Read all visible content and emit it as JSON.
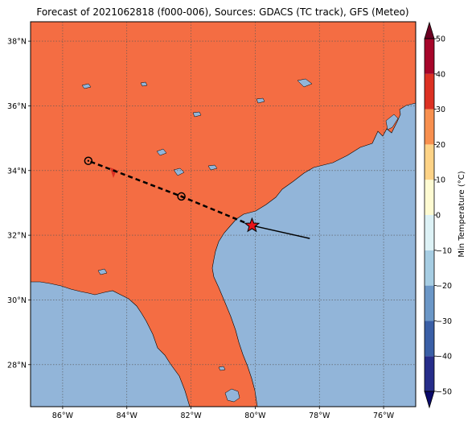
{
  "map": {
    "title": "Forecast of 2021062818 (f000-006), Sources: GDACS (TC track), GFS (Meteo)",
    "lon_range": [
      -87,
      -75
    ],
    "lat_range": [
      26.7,
      38.6
    ],
    "lon_ticks": [
      {
        "value": -86,
        "label": "86°W"
      },
      {
        "value": -84,
        "label": "84°W"
      },
      {
        "value": -82,
        "label": "82°W"
      },
      {
        "value": -80,
        "label": "80°W"
      },
      {
        "value": -78,
        "label": "78°W"
      },
      {
        "value": -76,
        "label": "76°W"
      }
    ],
    "lat_ticks": [
      {
        "value": 28,
        "label": "28°N"
      },
      {
        "value": 30,
        "label": "30°N"
      },
      {
        "value": 32,
        "label": "32°N"
      },
      {
        "value": 34,
        "label": "34°N"
      },
      {
        "value": 36,
        "label": "36°N"
      },
      {
        "value": 38,
        "label": "38°N"
      }
    ],
    "colors": {
      "land": "#f46d43",
      "ocean": "#92b5d9",
      "track": "#000000",
      "current_position": "#e8131b"
    },
    "track": {
      "past": [
        [
          -80.1,
          32.3
        ],
        [
          -78.3,
          31.9
        ]
      ],
      "forecast": [
        [
          -80.1,
          32.3
        ],
        [
          -82.3,
          33.2
        ],
        [
          -85.2,
          34.3
        ]
      ],
      "forecast_points": [
        [
          -82.3,
          33.2
        ],
        [
          -85.2,
          34.3
        ]
      ],
      "current": [
        -80.1,
        32.3
      ]
    }
  },
  "colorbar": {
    "label": "Min Temperature (°C)",
    "range": [
      -50,
      50
    ],
    "levels": [
      {
        "from": -50,
        "to": -40,
        "color": "#262d8a"
      },
      {
        "from": -40,
        "to": -30,
        "color": "#3a5fa6"
      },
      {
        "from": -30,
        "to": -20,
        "color": "#6b97c7"
      },
      {
        "from": -20,
        "to": -10,
        "color": "#a6cde3"
      },
      {
        "from": -10,
        "to": 0,
        "color": "#ddf2f6"
      },
      {
        "from": 0,
        "to": 10,
        "color": "#fefbd2"
      },
      {
        "from": 10,
        "to": 20,
        "color": "#fdd387"
      },
      {
        "from": 20,
        "to": 30,
        "color": "#f8904f"
      },
      {
        "from": 30,
        "to": 40,
        "color": "#dc3123"
      },
      {
        "from": 40,
        "to": 50,
        "color": "#a6062a"
      }
    ],
    "under_color": "#0a0a6b",
    "over_color": "#6b0022",
    "ticks": [
      {
        "value": 50,
        "label": "50"
      },
      {
        "value": 40,
        "label": "40"
      },
      {
        "value": 30,
        "label": "30"
      },
      {
        "value": 20,
        "label": "20"
      },
      {
        "value": 10,
        "label": "10"
      },
      {
        "value": 0,
        "label": "0"
      },
      {
        "value": -10,
        "label": "−10"
      },
      {
        "value": -20,
        "label": "−20"
      },
      {
        "value": -30,
        "label": "−30"
      },
      {
        "value": -40,
        "label": "−40"
      },
      {
        "value": -50,
        "label": "−50"
      }
    ]
  }
}
